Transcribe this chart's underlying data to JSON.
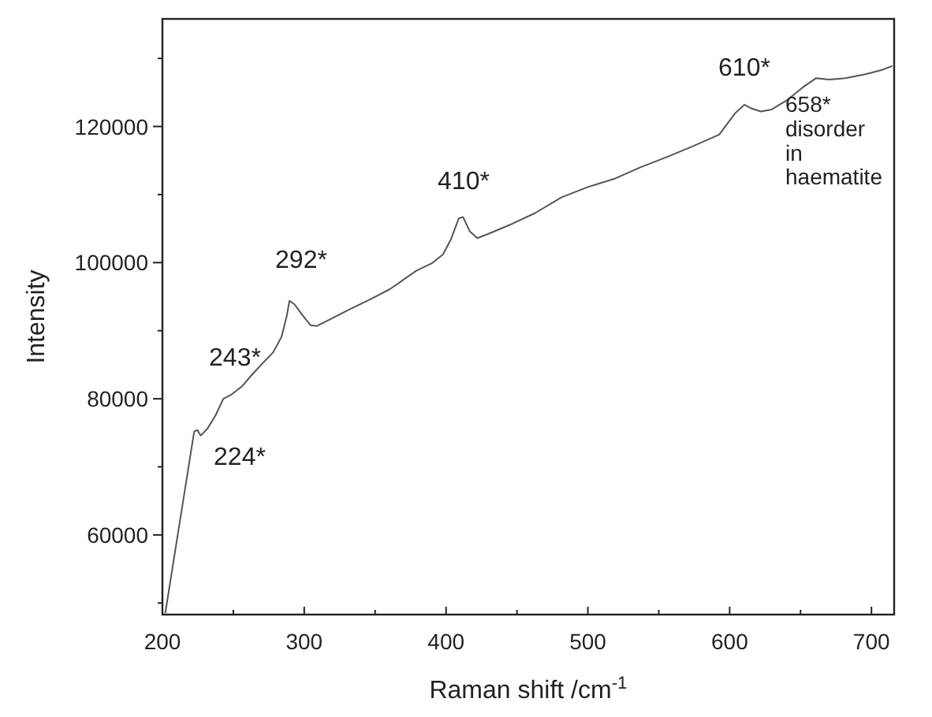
{
  "chart_data": {
    "type": "line",
    "xlabel": "Raman shift /cm$^{-1}$",
    "ylabel": "Intensity",
    "x": [
      202,
      222.4,
      224.6,
      227,
      231.7,
      237.3,
      243,
      248.5,
      256,
      263.4,
      271,
      278,
      284,
      287.7,
      289.6,
      293,
      299,
      304.5,
      309,
      315.7,
      330.6,
      345.5,
      360.4,
      379,
      390,
      397.8,
      403.4,
      409,
      412,
      416.7,
      422,
      429.6,
      444.4,
      463,
      481.5,
      500,
      518.5,
      537,
      555.6,
      574,
      592.6,
      603.7,
      610.4,
      614.8,
      622,
      629.6,
      640.7,
      651.9,
      661,
      670.4,
      681.5,
      696.3,
      707.4,
      714.8
    ],
    "series": [
      {
        "color": "#555555",
        "values": [
          48500,
          75200,
          75400,
          74600,
          75600,
          77500,
          80000,
          80600,
          81800,
          83600,
          85300,
          86800,
          89100,
          92200,
          94400,
          93900,
          92200,
          90800,
          90700,
          91400,
          93000,
          94500,
          96100,
          98800,
          99900,
          101200,
          103400,
          106500,
          106700,
          104600,
          103600,
          104200,
          105500,
          107300,
          109600,
          111100,
          112300,
          114000,
          115500,
          117100,
          118800,
          121900,
          123200,
          122700,
          122200,
          122500,
          123900,
          125800,
          127100,
          126900,
          127100,
          127700,
          128300,
          128900
        ]
      }
    ],
    "xlim": [
      200,
      716
    ],
    "ylim": [
      48300,
      135800
    ],
    "xticks": [
      200,
      {
        "value": 250,
        "label": null
      },
      300,
      {
        "value": 350,
        "label": null
      },
      400,
      {
        "value": 450,
        "label": null
      },
      500,
      {
        "value": 550,
        "label": null
      },
      600,
      {
        "value": 650,
        "label": null
      },
      700
    ],
    "yticks": [
      {
        "value": 50000,
        "label": null
      },
      60000,
      {
        "value": 70000,
        "label": null
      },
      80000,
      {
        "value": 90000,
        "label": null
      },
      100000,
      {
        "value": 110000,
        "label": null
      },
      120000,
      {
        "value": 130000,
        "label": null
      }
    ],
    "marker": "none",
    "line_style": "solid",
    "grid": false,
    "annotations": [
      "224*",
      "243*",
      "292*",
      "410*",
      "610*",
      "658*\ndisorder\nin\nhaematite"
    ]
  }
}
